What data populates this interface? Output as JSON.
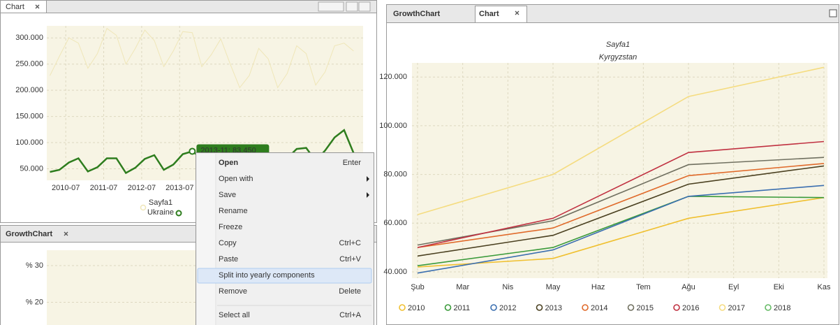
{
  "left_panel": {
    "tab": "Chart"
  },
  "growth_panel": {
    "tab": "GrowthChart"
  },
  "right_panel": {
    "tabs": [
      "GrowthChart",
      "Chart"
    ]
  },
  "tooltip": "2013-11: 83.450",
  "context_menu": {
    "items": [
      {
        "label": "Open",
        "shortcut": "Enter",
        "bold": true
      },
      {
        "label": "Open with",
        "submenu": true
      },
      {
        "label": "Save",
        "submenu": true
      },
      {
        "label": "Rename"
      },
      {
        "label": "Freeze"
      },
      {
        "label": "Copy",
        "shortcut": "Ctrl+C"
      },
      {
        "label": "Paste",
        "shortcut": "Ctrl+V"
      },
      {
        "label": "Split into yearly components",
        "highlighted": true
      },
      {
        "label": "Remove",
        "shortcut": "Delete"
      },
      {
        "label": "Select all",
        "shortcut": "Ctrl+A",
        "separator_before": true
      }
    ]
  },
  "chart_data": [
    {
      "type": "line",
      "grid": true,
      "x": [
        "2010-02",
        "2010-05",
        "2010-08",
        "2010-11",
        "2011-02",
        "2011-05",
        "2011-08",
        "2011-11",
        "2012-02",
        "2012-05",
        "2012-08",
        "2012-11",
        "2013-02",
        "2013-05",
        "2013-08",
        "2013-11",
        "2014-02",
        "2014-05",
        "2014-08",
        "2014-11",
        "2015-02",
        "2015-05",
        "2015-08",
        "2015-11",
        "2016-02",
        "2016-05",
        "2016-08",
        "2016-11",
        "2017-02",
        "2017-05",
        "2017-08",
        "2017-11",
        "2018-02"
      ],
      "xlim": [
        "2010-01",
        "2018-05"
      ],
      "xticks": [
        "2010-07",
        "2011-07",
        "2012-07",
        "2013-07"
      ],
      "ylim": [
        28000,
        323000
      ],
      "yticks": [
        {
          "value": 50000,
          "label": "50.000"
        },
        {
          "value": 100000,
          "label": "100.000"
        },
        {
          "value": 150000,
          "label": "150.000"
        },
        {
          "value": 200000,
          "label": "200.000"
        },
        {
          "value": 250000,
          "label": "250.000"
        },
        {
          "value": 300000,
          "label": "300.000"
        }
      ],
      "series": [
        {
          "name": [
            "Sayfa1",
            "Ukraine"
          ],
          "color": "#efe6b8",
          "values": [
            228000,
            265000,
            300000,
            290000,
            242000,
            270000,
            318000,
            305000,
            250000,
            280000,
            315000,
            295000,
            245000,
            275000,
            312000,
            310000,
            245000,
            268000,
            298000,
            250000,
            205000,
            228000,
            280000,
            260000,
            205000,
            232000,
            285000,
            270000,
            210000,
            235000,
            285000,
            290000,
            275000
          ]
        },
        {
          "color": "#2e7d1e",
          "values": [
            44000,
            48000,
            62000,
            70000,
            45000,
            53000,
            70000,
            70000,
            42000,
            52000,
            69000,
            76000,
            48000,
            58000,
            78000,
            83450,
            70000,
            60000,
            75000,
            80000,
            55000,
            65000,
            75000,
            80000,
            60000,
            70000,
            88000,
            90000,
            65000,
            85000,
            110000,
            124000,
            80000
          ]
        }
      ]
    },
    {
      "type": "line",
      "grid": true,
      "ylim": [
        13.8,
        34.2
      ],
      "yticks": [
        {
          "value": 20,
          "label": "% 20"
        },
        {
          "value": 30,
          "label": "% 30"
        }
      ]
    },
    {
      "type": "line",
      "grid": true,
      "title": "Sayfa1",
      "subtitle": "Kyrgyzstan",
      "xticks": [
        "Şub",
        "Mar",
        "Nis",
        "May",
        "Haz",
        "Tem",
        "Ağu",
        "Eyl",
        "Eki",
        "Kas"
      ],
      "x": [
        "Şub",
        "May",
        "Ağu",
        "Kas"
      ],
      "ylim": [
        37400,
        125800
      ],
      "yticks": [
        {
          "value": 40000,
          "label": "40.000"
        },
        {
          "value": 60000,
          "label": "60.000"
        },
        {
          "value": 80000,
          "label": "80.000"
        },
        {
          "value": 100000,
          "label": "100.000"
        },
        {
          "value": 120000,
          "label": "120.000"
        }
      ],
      "series": [
        {
          "name": "2010",
          "color": "#f0c030",
          "values": [
            42000,
            45500,
            62000,
            70500
          ]
        },
        {
          "name": "2011",
          "color": "#3a9a3a",
          "values": [
            42500,
            50000,
            71000,
            70500
          ]
        },
        {
          "name": "2012",
          "color": "#3b6fb0",
          "values": [
            39500,
            49000,
            71000,
            75500
          ]
        },
        {
          "name": "2013",
          "color": "#4a4020",
          "values": [
            46500,
            55000,
            76000,
            83500
          ]
        },
        {
          "name": "2014",
          "color": "#e06a2a",
          "values": [
            50000,
            58000,
            79500,
            84500
          ]
        },
        {
          "name": "2015",
          "color": "#707060",
          "values": [
            51000,
            61000,
            84000,
            87000
          ]
        },
        {
          "name": "2016",
          "color": "#c03040",
          "values": [
            50000,
            62000,
            89000,
            93500
          ]
        },
        {
          "name": "2017",
          "color": "#f5dc80",
          "values": [
            63500,
            80000,
            112000,
            124000
          ]
        },
        {
          "name": "2018",
          "color": "#66bb66",
          "values": [
            null,
            null,
            null,
            null
          ]
        }
      ]
    }
  ]
}
